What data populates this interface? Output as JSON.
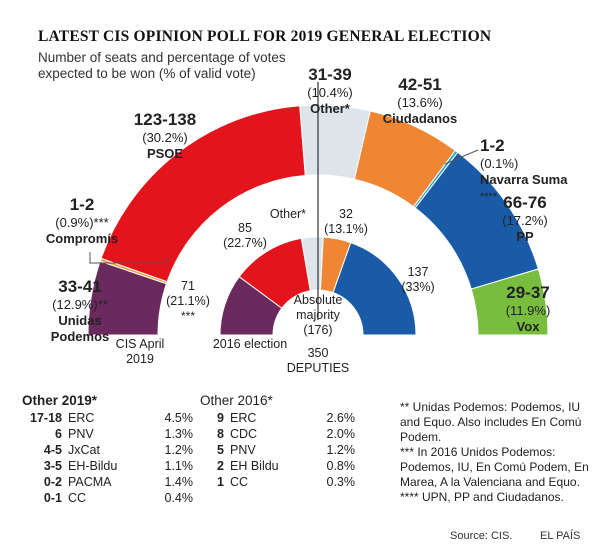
{
  "title": "LATEST CIS OPINION POLL FOR 2019 GENERAL ELECTION",
  "subtitle_line1": "Number of seats and percentage of votes",
  "subtitle_line2": "expected to be won (% of valid vote)",
  "colors": {
    "Unidas Podemos": "#6b2a5e",
    "Compromís": "#e8a33a",
    "PSOE": "#e3141b",
    "Other": "#dde4ea",
    "Ciudadanos": "#ee8634",
    "Navarra Suma": "#2aa6c9",
    "PP": "#1a5ba8",
    "Vox": "#79bd3e"
  },
  "chart_data": [
    {
      "type": "pie",
      "name": "CIS April 2019",
      "categories": [
        "Unidas Podemos",
        "Compromís",
        "PSOE",
        "Other",
        "Ciudadanos",
        "Navarra Suma",
        "PP",
        "Vox"
      ],
      "values": [
        37,
        1.5,
        130.5,
        35,
        46.5,
        1.5,
        71,
        33
      ],
      "seat_ranges": [
        "33-41",
        "1-2",
        "123-138",
        "31-39",
        "42-51",
        "1-2",
        "66-76",
        "29-37"
      ],
      "vote_pct": [
        "(12.9%)**",
        "(0.9%)***",
        "(30.2%)",
        "(10.4%)",
        "(13.6%)",
        "(0.1%)",
        "(17.2%)",
        "(11.9%)"
      ],
      "labels": [
        "Unidas Podemos",
        "Compromís",
        "PSOE",
        "Other*",
        "Ciudadanos",
        "Navarra Suma ****",
        "PP",
        "Vox"
      ]
    },
    {
      "type": "pie",
      "name": "2016 election",
      "categories": [
        "Unidas Podemos",
        "PSOE",
        "Other",
        "Ciudadanos",
        "PP"
      ],
      "values": [
        71,
        85,
        25,
        32,
        137
      ],
      "vote_pct": [
        "(21.1%)",
        "(22.7%)",
        "",
        "(13.1%)",
        "(33%)"
      ],
      "labels": [
        "***",
        "",
        "Other*",
        "",
        ""
      ]
    }
  ],
  "labels": {
    "cis_april": [
      "CIS April",
      "2019"
    ],
    "election_2016": "2016 election",
    "absolute_majority": [
      "Absolute",
      "majority",
      "(176)"
    ],
    "deputies": [
      "350",
      "DEPUTIES"
    ]
  },
  "other2019": {
    "header": "Other 2019*",
    "rows": [
      {
        "seats": "17-18",
        "party": "ERC",
        "pct": "4.5%"
      },
      {
        "seats": "6",
        "party": "PNV",
        "pct": "1.3%"
      },
      {
        "seats": "4-5",
        "party": "JxCat",
        "pct": "1.2%"
      },
      {
        "seats": "3-5",
        "party": "EH-Bildu",
        "pct": "1.1%"
      },
      {
        "seats": "0-2",
        "party": "PACMA",
        "pct": "1.4%"
      },
      {
        "seats": "0-1",
        "party": "CC",
        "pct": "0.4%"
      }
    ]
  },
  "other2016": {
    "header": "Other 2016*",
    "rows": [
      {
        "seats": "9",
        "party": "ERC",
        "pct": "2.6%"
      },
      {
        "seats": "8",
        "party": "CDC",
        "pct": "2.0%"
      },
      {
        "seats": "5",
        "party": "PNV",
        "pct": "1.2%"
      },
      {
        "seats": "2",
        "party": "EH Bildu",
        "pct": "0.8%"
      },
      {
        "seats": "1",
        "party": "CC",
        "pct": "0.3%"
      }
    ]
  },
  "notes": [
    "** Unidas Podemos: Podemos, IU and Equo. Also includes En Comú Podem.",
    "*** In 2016 Unidos Podemos: Podemos, IU, En Comú Podem, En Marea, A la Valenciana and Equo.",
    "**** UPN, PP and Ciudadanos."
  ],
  "source": "Source: CIS.",
  "publisher": "EL PAÍS"
}
